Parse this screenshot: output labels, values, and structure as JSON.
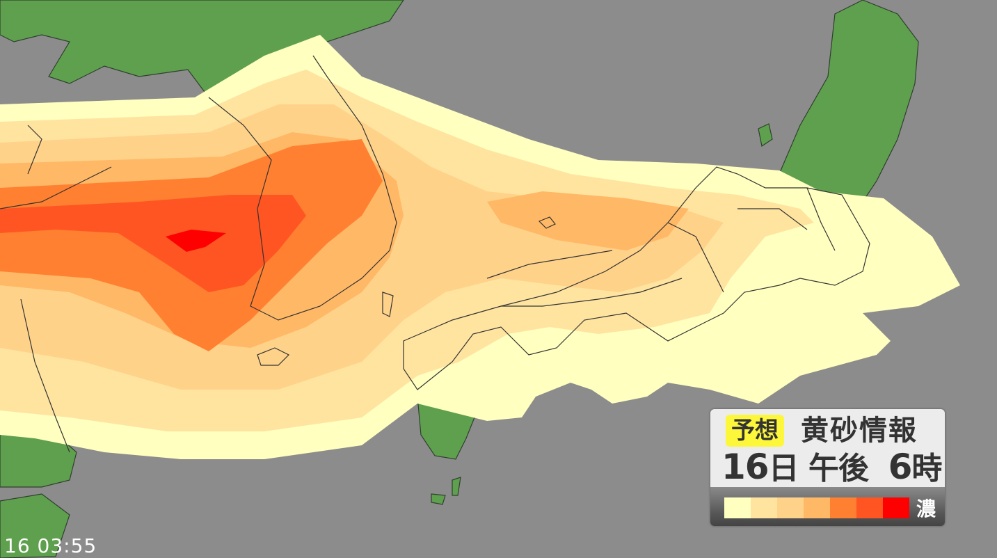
{
  "legend": {
    "badge": "予想",
    "title": "黄砂情報",
    "date_day": "16",
    "date_day_unit": "日",
    "date_period": "午後",
    "date_hour": "6",
    "date_hour_unit": "時",
    "dense_label": "濃",
    "scale_colors": [
      "#ffffc0",
      "#ffe4a0",
      "#ffd28a",
      "#ffb866",
      "#ff8030",
      "#ff5522",
      "#ff0000"
    ]
  },
  "timestamp": "16 03:55",
  "colors": {
    "sea": "#8c8c8c",
    "land": "#5fa04e",
    "border": "#333333"
  }
}
